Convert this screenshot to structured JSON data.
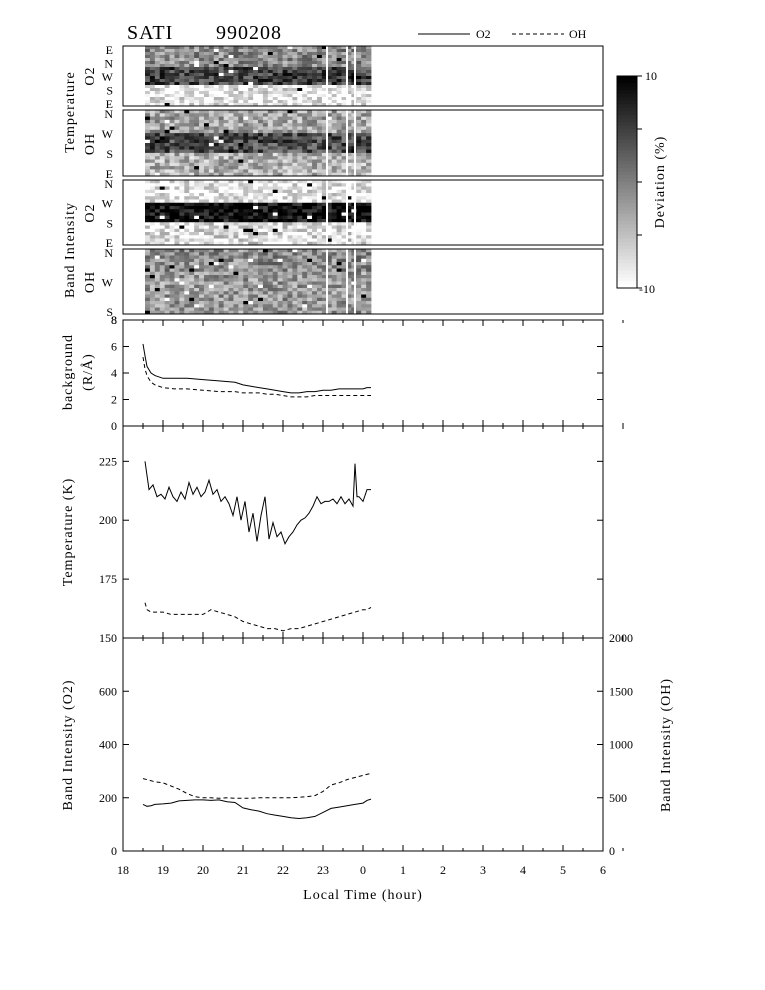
{
  "header": {
    "instrument": "SATI",
    "date": "990208",
    "legend": [
      {
        "label": "O2",
        "dash": "solid"
      },
      {
        "label": "OH",
        "dash": "dashed"
      }
    ]
  },
  "chart_data": [
    {
      "type": "heatmap",
      "title": "",
      "layer": "O2",
      "group_label": "Temperature",
      "row_label": "O2",
      "direction_labels": [
        "E",
        "N",
        "W",
        "S",
        "E"
      ],
      "time_range": [
        18.55,
        24.2
      ],
      "rows": 20,
      "cols": 46,
      "bands": [
        {
          "direction": "N",
          "level": 0.45
        },
        {
          "direction": "W",
          "level": 0.75
        },
        {
          "direction": "S",
          "level": 0.1
        }
      ]
    },
    {
      "type": "heatmap",
      "layer": "OH",
      "group_label": "Temperature",
      "row_label": "OH",
      "direction_labels": [
        "N",
        "W",
        "S",
        "E"
      ],
      "time_range": [
        18.55,
        24.2
      ],
      "rows": 20,
      "cols": 46,
      "bands": [
        {
          "direction": "N",
          "level": 0.35
        },
        {
          "direction": "W",
          "level": 0.7
        },
        {
          "direction": "S",
          "level": 0.3
        }
      ]
    },
    {
      "type": "heatmap",
      "layer": "O2",
      "group_label": "Band Intensity",
      "row_label": "O2",
      "direction_labels": [
        "N",
        "W",
        "S",
        "E"
      ],
      "time_range": [
        18.55,
        24.2
      ],
      "rows": 20,
      "cols": 46,
      "bands": [
        {
          "direction": "N",
          "level": 0.1
        },
        {
          "direction": "W",
          "level": 0.95
        },
        {
          "direction": "S",
          "level": 0.15
        }
      ]
    },
    {
      "type": "heatmap",
      "layer": "OH",
      "group_label": "Band Intensity",
      "row_label": "OH",
      "direction_labels": [
        "N",
        "W",
        "S"
      ],
      "time_range": [
        18.55,
        24.2
      ],
      "rows": 20,
      "cols": 46,
      "bands": [
        {
          "direction": "N",
          "level": 0.45
        },
        {
          "direction": "W",
          "level": 0.4
        },
        {
          "direction": "S",
          "level": 0.4
        }
      ]
    },
    {
      "type": "heatmap-colorbar",
      "label": "Deviation (%)",
      "range": [
        -10,
        10
      ],
      "ticks": [
        -10,
        -5,
        0,
        5,
        10
      ],
      "tick_labels": [
        "-10",
        "10"
      ]
    },
    {
      "type": "line",
      "ylabel": "background (R/A)",
      "ylabel_lines": [
        "background",
        "(R/Å)"
      ],
      "ylim": [
        0,
        8
      ],
      "yticks": [
        0,
        2,
        4,
        6,
        8
      ],
      "series": [
        {
          "name": "O2",
          "dash": "solid",
          "x": [
            18.5,
            18.55,
            18.6,
            18.7,
            18.8,
            19.0,
            19.3,
            19.6,
            20.0,
            20.4,
            20.8,
            21.0,
            21.2,
            21.4,
            21.6,
            21.8,
            22.0,
            22.2,
            22.4,
            22.6,
            22.8,
            23.0,
            23.2,
            23.4,
            23.6,
            23.8,
            24.0,
            24.1,
            24.2
          ],
          "y": [
            6.2,
            5.3,
            4.5,
            4.0,
            3.8,
            3.6,
            3.6,
            3.6,
            3.5,
            3.4,
            3.3,
            3.1,
            3.0,
            2.9,
            2.8,
            2.7,
            2.6,
            2.5,
            2.5,
            2.6,
            2.6,
            2.7,
            2.7,
            2.8,
            2.8,
            2.8,
            2.8,
            2.9,
            2.9
          ]
        },
        {
          "name": "OH",
          "dash": "dashed",
          "x": [
            18.5,
            18.55,
            18.6,
            18.7,
            18.8,
            19.0,
            19.3,
            19.6,
            20.0,
            20.4,
            20.8,
            21.0,
            21.2,
            21.4,
            21.6,
            21.8,
            22.0,
            22.2,
            22.4,
            22.6,
            22.8,
            23.0,
            23.2,
            23.4,
            23.6,
            23.8,
            24.0,
            24.1,
            24.2
          ],
          "y": [
            5.2,
            4.3,
            3.8,
            3.3,
            3.1,
            2.9,
            2.8,
            2.8,
            2.7,
            2.6,
            2.6,
            2.5,
            2.5,
            2.5,
            2.4,
            2.4,
            2.3,
            2.2,
            2.2,
            2.2,
            2.3,
            2.3,
            2.3,
            2.3,
            2.3,
            2.3,
            2.3,
            2.3,
            2.3
          ]
        }
      ]
    },
    {
      "type": "line",
      "ylabel": "Temperature (K)",
      "ylim": [
        150,
        240
      ],
      "yticks": [
        150,
        175,
        200,
        225
      ],
      "series": [
        {
          "name": "O2",
          "dash": "solid",
          "x": [
            18.55,
            18.65,
            18.75,
            18.85,
            18.95,
            19.05,
            19.15,
            19.25,
            19.35,
            19.45,
            19.55,
            19.65,
            19.75,
            19.85,
            19.95,
            20.05,
            20.15,
            20.25,
            20.35,
            20.45,
            20.55,
            20.65,
            20.75,
            20.85,
            20.95,
            21.05,
            21.15,
            21.25,
            21.35,
            21.45,
            21.55,
            21.65,
            21.75,
            21.85,
            21.95,
            22.05,
            22.15,
            22.25,
            22.35,
            22.45,
            22.55,
            22.65,
            22.75,
            22.85,
            22.95,
            23.05,
            23.15,
            23.25,
            23.35,
            23.45,
            23.55,
            23.65,
            23.75,
            23.8,
            23.85,
            23.9,
            24.0,
            24.1,
            24.2
          ],
          "y": [
            225,
            213,
            215,
            210,
            211,
            209,
            214,
            210,
            208,
            212,
            209,
            216,
            211,
            214,
            210,
            212,
            217,
            211,
            213,
            208,
            210,
            207,
            202,
            210,
            200,
            208,
            195,
            203,
            191,
            202,
            210,
            192,
            199,
            193,
            195,
            190,
            193,
            195,
            198,
            200,
            201,
            203,
            206,
            210,
            207,
            208,
            208,
            209,
            207,
            210,
            207,
            209,
            206,
            224,
            210,
            210,
            208,
            213,
            213
          ]
        },
        {
          "name": "OH",
          "dash": "dashed",
          "x": [
            18.55,
            18.6,
            18.7,
            18.8,
            19.0,
            19.2,
            19.4,
            19.6,
            19.8,
            20.0,
            20.2,
            20.4,
            20.6,
            20.8,
            21.0,
            21.2,
            21.4,
            21.6,
            21.8,
            22.0,
            22.2,
            22.4,
            22.6,
            22.8,
            23.0,
            23.2,
            23.4,
            23.6,
            23.8,
            24.0,
            24.1,
            24.2
          ],
          "y": [
            165,
            162,
            161,
            161,
            161,
            160,
            160,
            160,
            160,
            160,
            162,
            161,
            160,
            159,
            157,
            156,
            155,
            154,
            154,
            153,
            154,
            154,
            155,
            156,
            157,
            158,
            159,
            160,
            161,
            162,
            162,
            163
          ]
        }
      ]
    },
    {
      "type": "line",
      "ylabel": "Band Intensity (O2)",
      "ylabel_right": "Band Intensity (OH)",
      "ylim": [
        0,
        800
      ],
      "yticks": [
        0,
        200,
        400,
        600
      ],
      "ylim_right": [
        0,
        2000
      ],
      "yticks_right": [
        0,
        500,
        1000,
        1500,
        2000
      ],
      "xlabel": "Local Time (hour)",
      "xlim": [
        18,
        30
      ],
      "xtick_labels": [
        "18",
        "19",
        "20",
        "21",
        "22",
        "23",
        "0",
        "1",
        "2",
        "3",
        "4",
        "5",
        "6"
      ],
      "series": [
        {
          "name": "O2",
          "dash": "solid",
          "axis": "left",
          "x": [
            18.5,
            18.6,
            18.7,
            18.8,
            19.0,
            19.2,
            19.4,
            19.6,
            19.8,
            20.0,
            20.2,
            20.4,
            20.6,
            20.8,
            21.0,
            21.2,
            21.4,
            21.6,
            21.8,
            22.0,
            22.2,
            22.4,
            22.6,
            22.8,
            23.0,
            23.2,
            23.4,
            23.6,
            23.8,
            24.0,
            24.1,
            24.2
          ],
          "y": [
            175,
            168,
            170,
            175,
            177,
            180,
            188,
            190,
            192,
            192,
            190,
            192,
            185,
            182,
            162,
            155,
            150,
            140,
            135,
            130,
            125,
            122,
            125,
            130,
            145,
            160,
            165,
            170,
            175,
            180,
            190,
            195
          ]
        },
        {
          "name": "OH",
          "dash": "dashed",
          "axis": "right",
          "x": [
            18.5,
            18.6,
            18.8,
            19.0,
            19.2,
            19.4,
            19.6,
            19.8,
            20.0,
            20.2,
            20.4,
            20.6,
            20.8,
            21.0,
            21.2,
            21.4,
            21.6,
            21.8,
            22.0,
            22.2,
            22.4,
            22.6,
            22.8,
            23.0,
            23.2,
            23.4,
            23.6,
            23.8,
            24.0,
            24.2
          ],
          "y": [
            680,
            670,
            650,
            640,
            610,
            580,
            540,
            510,
            500,
            500,
            495,
            500,
            495,
            495,
            495,
            500,
            500,
            500,
            500,
            500,
            505,
            510,
            520,
            560,
            620,
            640,
            670,
            690,
            710,
            730
          ]
        }
      ]
    }
  ]
}
